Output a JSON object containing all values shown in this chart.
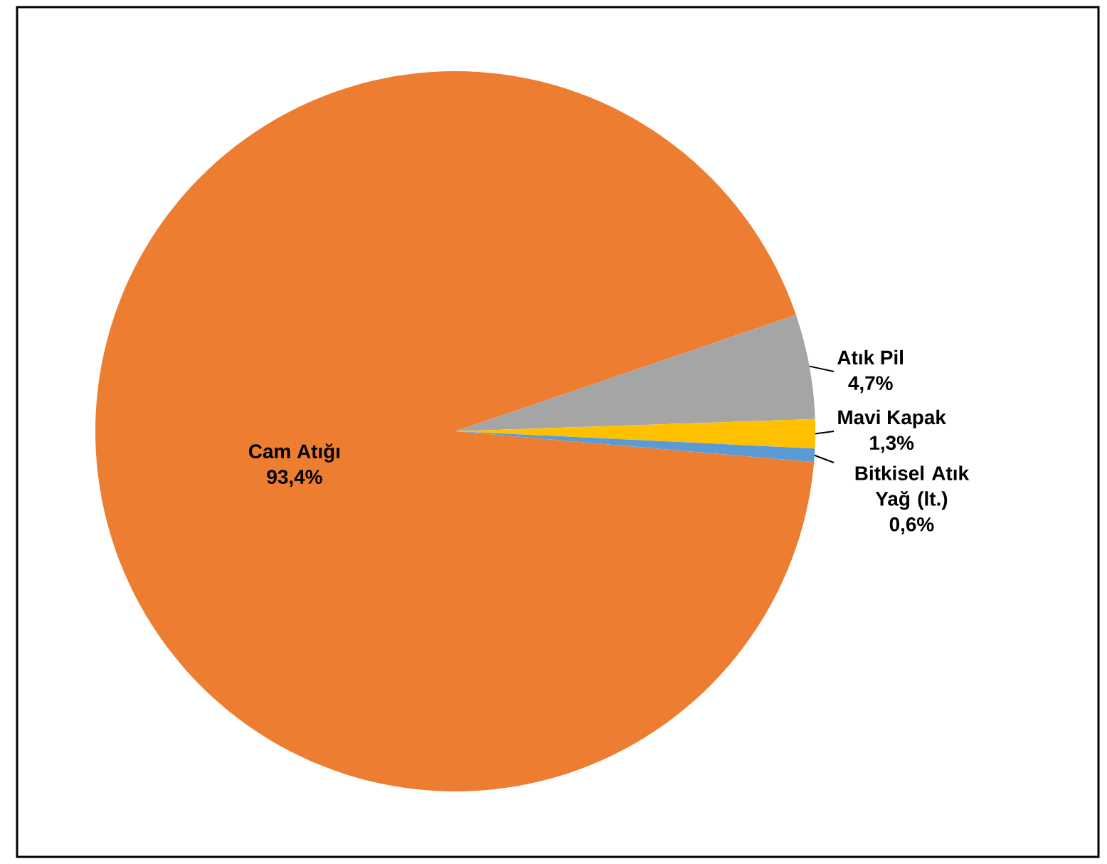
{
  "chart_data": {
    "type": "pie",
    "categories": [
      "Cam Atığı",
      "Atık Pil",
      "Mavi Kapak",
      "Bitkisel Atık Yağ (lt.)"
    ],
    "values": [
      93.4,
      4.7,
      1.3,
      0.6
    ],
    "value_labels": [
      "93,4%",
      "4,7%",
      "1,3%",
      "0,6%"
    ],
    "colors": [
      "#ed7d31",
      "#a5a5a5",
      "#ffc000",
      "#5b9bd5"
    ]
  }
}
